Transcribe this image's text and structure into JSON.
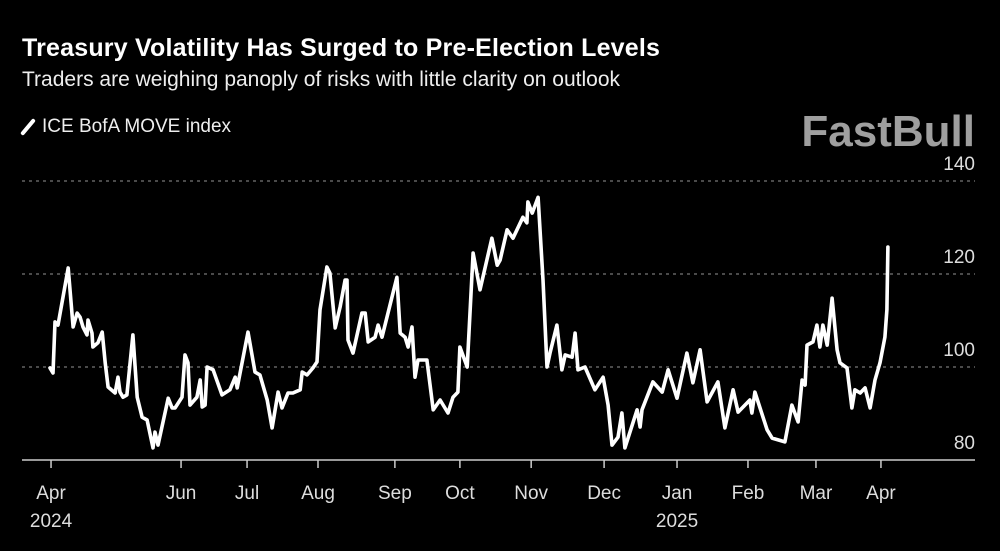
{
  "chart_data": {
    "type": "line",
    "title": "Treasury Volatility Has Surged to Pre-Election Levels",
    "subtitle": "Traders are weighing panoply of risks with little clarity on outlook",
    "xlabel": "",
    "ylabel": "",
    "x_unit": "approx. trading days since Apr 1, 2024",
    "xlim": [
      -8.8,
      280
    ],
    "ylim": [
      80,
      140
    ],
    "grid": true,
    "legend_position": "top-left",
    "y_ticks": [
      80,
      100,
      120,
      140
    ],
    "x_ticks": [
      {
        "label": "Apr",
        "year": "2024",
        "x": 0
      },
      {
        "label": "Jun",
        "year": "",
        "x": 39.4
      },
      {
        "label": "Jul",
        "year": "",
        "x": 59.4
      },
      {
        "label": "Aug",
        "year": "",
        "x": 80.9
      },
      {
        "label": "Sep",
        "year": "",
        "x": 104.2
      },
      {
        "label": "Oct",
        "year": "",
        "x": 123.9
      },
      {
        "label": "Nov",
        "year": "",
        "x": 145.5
      },
      {
        "label": "Dec",
        "year": "",
        "x": 167.6
      },
      {
        "label": "Jan",
        "year": "2025",
        "x": 189.7
      },
      {
        "label": "Feb",
        "year": "",
        "x": 211.2
      },
      {
        "label": "Mar",
        "year": "",
        "x": 231.8
      },
      {
        "label": "Apr",
        "year": "",
        "x": 251.5
      }
    ],
    "series": [
      {
        "name": "ICE BofA MOVE index",
        "color": "#ffffff",
        "x": [
          -0.3,
          0.6,
          1.2,
          2.1,
          5.2,
          6.7,
          7.9,
          8.8,
          9.7,
          10.9,
          11.2,
          12.4,
          12.7,
          14.2,
          15.5,
          16.4,
          17.3,
          19.4,
          20.3,
          20.9,
          21.8,
          23.0,
          24.8,
          26.1,
          27.6,
          29.1,
          30.9,
          31.5,
          32.4,
          35.5,
          36.7,
          37.6,
          39.7,
          40.6,
          41.5,
          42.1,
          44.2,
          45.2,
          45.8,
          46.7,
          47.3,
          49.1,
          51.8,
          54.2,
          55.8,
          56.4,
          59.7,
          61.8,
          63.3,
          65.5,
          67.0,
          68.8,
          70.0,
          71.8,
          73.3,
          75.5,
          76.1,
          77.6,
          79.4,
          80.6,
          81.5,
          83.6,
          84.5,
          86.1,
          87.6,
          89.1,
          89.7,
          90.0,
          91.5,
          94.2,
          95.2,
          96.1,
          98.2,
          99.1,
          100.3,
          104.8,
          105.8,
          107.3,
          108.2,
          109.4,
          110.3,
          111.2,
          113.9,
          115.8,
          117.9,
          120.3,
          121.8,
          123.3,
          123.9,
          126.1,
          127.9,
          130.0,
          133.6,
          135.2,
          136.1,
          138.2,
          140.0,
          143.0,
          144.2,
          144.5,
          145.8,
          147.6,
          149.1,
          150.3,
          151.2,
          153.3,
          154.8,
          155.8,
          157.9,
          158.8,
          159.7,
          161.8,
          164.8,
          167.3,
          168.8,
          170.0,
          171.8,
          173.0,
          173.9,
          177.6,
          178.5,
          179.1,
          182.4,
          185.2,
          187.0,
          189.7,
          192.7,
          194.5,
          196.7,
          198.8,
          202.1,
          204.2,
          206.7,
          208.2,
          211.8,
          212.4,
          213.3,
          217.0,
          218.5,
          222.4,
          224.5,
          226.4,
          227.6,
          228.5,
          229.1,
          230.9,
          232.1,
          233.0,
          233.9,
          235.2,
          236.7,
          238.2,
          239.1,
          241.2,
          242.7,
          243.6,
          245.2,
          246.7,
          248.2,
          249.7,
          251.2,
          252.7,
          253.3,
          253.6
        ],
        "y": [
          99.8,
          98.7,
          109.7,
          109.0,
          121.3,
          108.6,
          111.6,
          110.7,
          108.6,
          106.9,
          110.1,
          107.3,
          104.3,
          105.2,
          107.5,
          100.9,
          95.7,
          94.4,
          97.8,
          94.6,
          93.5,
          94.0,
          106.9,
          93.5,
          89.2,
          88.6,
          82.6,
          86.0,
          83.2,
          93.3,
          91.2,
          91.2,
          93.5,
          102.6,
          100.9,
          91.8,
          93.5,
          97.2,
          91.4,
          91.8,
          100.0,
          99.4,
          94.0,
          95.1,
          97.8,
          95.5,
          107.5,
          98.9,
          98.3,
          92.9,
          86.9,
          94.6,
          91.2,
          94.4,
          94.4,
          95.1,
          98.9,
          98.3,
          99.8,
          101.1,
          112.3,
          121.5,
          120.2,
          108.4,
          112.9,
          118.7,
          118.7,
          105.8,
          103.0,
          111.6,
          111.6,
          105.4,
          106.4,
          109.0,
          106.4,
          119.3,
          107.3,
          106.4,
          104.3,
          108.6,
          97.8,
          101.5,
          101.5,
          90.8,
          92.9,
          90.1,
          93.5,
          94.6,
          104.3,
          100.0,
          124.5,
          116.6,
          127.7,
          121.9,
          123.0,
          129.5,
          127.7,
          132.2,
          131.0,
          135.5,
          133.1,
          136.5,
          118.7,
          100.0,
          103.0,
          109.0,
          99.4,
          102.6,
          102.1,
          107.3,
          99.4,
          100.0,
          95.1,
          97.8,
          91.8,
          83.2,
          84.9,
          90.1,
          82.6,
          90.8,
          87.1,
          90.8,
          96.8,
          94.6,
          99.4,
          93.3,
          103.0,
          96.6,
          103.7,
          92.5,
          96.8,
          86.9,
          95.1,
          90.3,
          92.9,
          90.1,
          94.6,
          86.5,
          84.7,
          83.9,
          91.8,
          88.2,
          97.2,
          96.1,
          104.7,
          105.4,
          109.0,
          104.3,
          109.0,
          104.7,
          114.8,
          103.7,
          100.9,
          99.8,
          91.2,
          95.1,
          94.4,
          95.5,
          91.2,
          97.2,
          100.9,
          106.4,
          112.3,
          125.8
        ]
      }
    ]
  },
  "watermark": "FastBull"
}
